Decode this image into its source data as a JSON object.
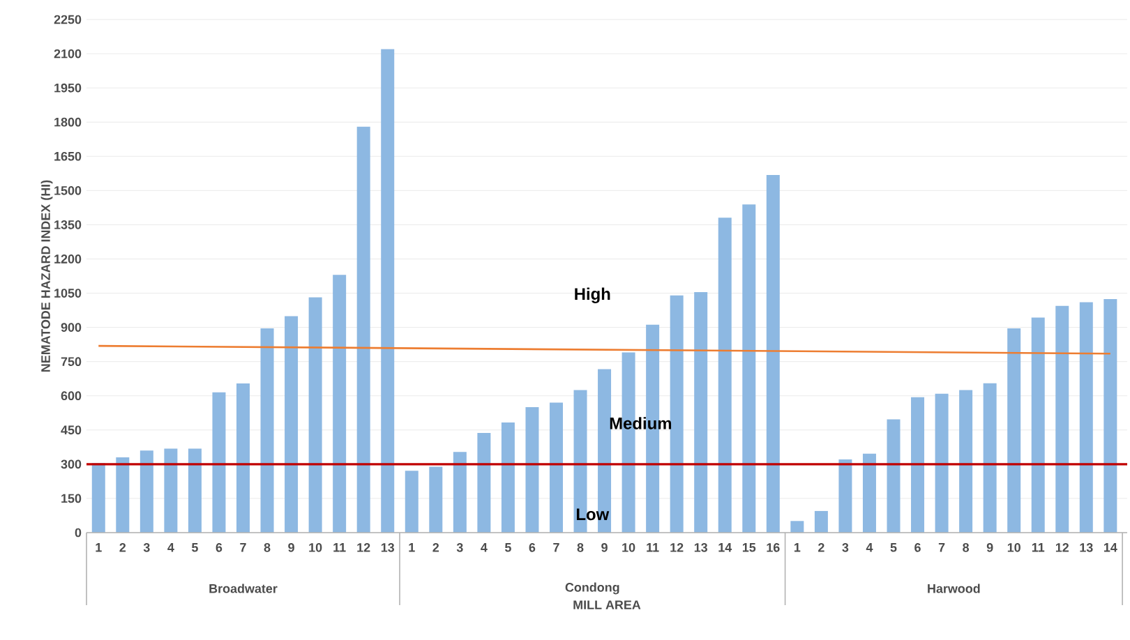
{
  "chart_data": {
    "type": "bar",
    "xlabel": "MILL AREA",
    "ylabel": "NEMATODE HAZARD INDEX (HI)",
    "categories": [
      "1",
      "2",
      "3",
      "4",
      "5",
      "6",
      "7",
      "8",
      "9",
      "10",
      "11",
      "12",
      "13",
      "1",
      "2",
      "3",
      "4",
      "5",
      "6",
      "7",
      "8",
      "9",
      "10",
      "11",
      "12",
      "13",
      "14",
      "15",
      "16",
      "1",
      "2",
      "3",
      "4",
      "5",
      "6",
      "7",
      "8",
      "9",
      "10",
      "11",
      "12",
      "13",
      "14"
    ],
    "series": [
      {
        "color": "#8db8e2",
        "values": [
          305,
          330,
          360,
          368,
          368,
          615,
          654,
          896,
          949,
          1032,
          1130,
          1780,
          2120,
          271,
          289,
          354,
          437,
          483,
          550,
          570,
          625,
          717,
          790,
          912,
          1040,
          1055,
          1381,
          1439,
          1568,
          51,
          95,
          321,
          346,
          497,
          594,
          609,
          625,
          655,
          896,
          943,
          994,
          1010,
          1024
        ]
      },
      {
        "type": "line",
        "color": "#ed7d31",
        "values": [
          819,
          null,
          null,
          null,
          null,
          null,
          null,
          null,
          null,
          null,
          null,
          null,
          null,
          null,
          null,
          null,
          null,
          null,
          null,
          null,
          null,
          null,
          null,
          null,
          null,
          null,
          null,
          null,
          null,
          null,
          null,
          null,
          null,
          null,
          null,
          null,
          null,
          null,
          null,
          null,
          null,
          null,
          785
        ]
      }
    ],
    "ylim": [
      0,
      2250
    ],
    "yticks": [
      0,
      150,
      300,
      450,
      600,
      750,
      900,
      1050,
      1200,
      1350,
      1500,
      1650,
      1800,
      1950,
      2100,
      2250
    ],
    "grid": "y",
    "ref_lines": [
      {
        "axis": "y",
        "value": 300,
        "color": "#c00000"
      }
    ],
    "annotations": [
      "Broadwater",
      "Condong",
      "Harwood",
      "High",
      "Medium",
      "Low"
    ]
  }
}
